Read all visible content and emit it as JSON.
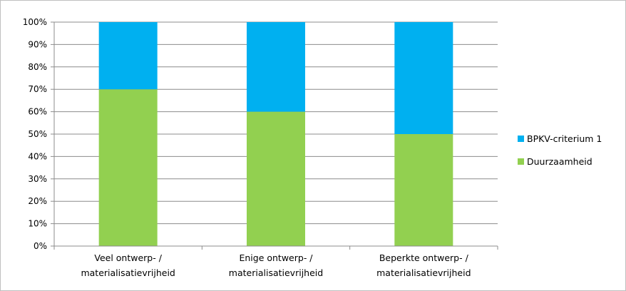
{
  "chart_data": {
    "type": "bar",
    "stacked": true,
    "percent_stacked": true,
    "categories": [
      [
        "Veel ontwerp- /",
        "materialisatievrijheid"
      ],
      [
        "Enige ontwerp- /",
        "materialisatievrijheid"
      ],
      [
        "Beperkte ontwerp- /",
        "materialisatievrijheid"
      ]
    ],
    "series": [
      {
        "name": "Duurzaamheid",
        "color": "#92d050",
        "values": [
          70,
          60,
          50
        ]
      },
      {
        "name": "BPKV-criterium 1",
        "color": "#00b0f0",
        "values": [
          30,
          40,
          50
        ]
      }
    ],
    "yticks": [
      "0%",
      "10%",
      "20%",
      "30%",
      "40%",
      "50%",
      "60%",
      "70%",
      "80%",
      "90%",
      "100%"
    ],
    "ylim": [
      0,
      100
    ],
    "grid": true,
    "legend": {
      "placement": "right",
      "order": [
        "BPKV-criterium 1",
        "Duurzaamheid"
      ]
    },
    "title": "",
    "xlabel": "",
    "ylabel": ""
  }
}
